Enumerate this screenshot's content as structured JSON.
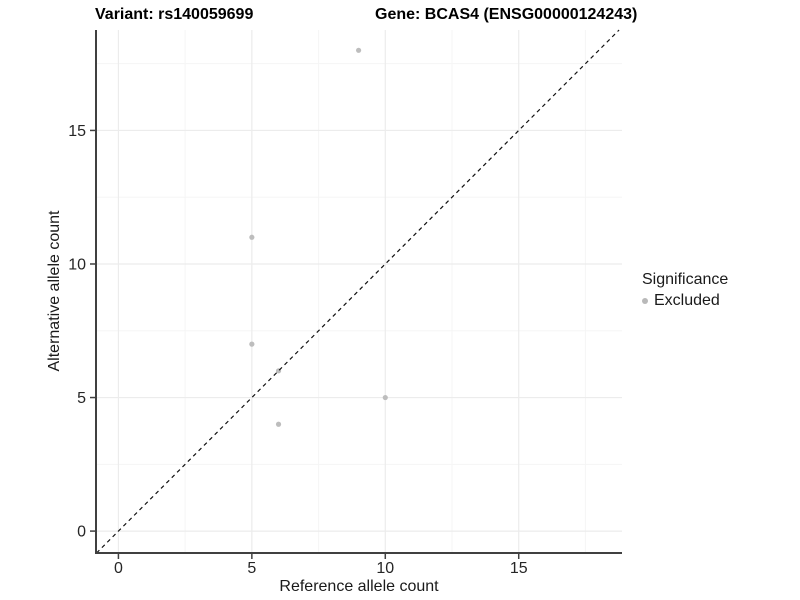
{
  "header": {
    "variant_title": "Variant: rs140059699",
    "gene_title": "Gene: BCAS4 (ENSG00000124243)"
  },
  "chart_data": {
    "type": "scatter",
    "xlabel": "Reference allele count",
    "ylabel": "Alternative allele count",
    "xlim": [
      -0.84,
      18.87
    ],
    "ylim": [
      -0.82,
      18.76
    ],
    "x_major_ticks": [
      0,
      5,
      10,
      15
    ],
    "y_major_ticks": [
      0,
      5,
      10,
      15
    ],
    "x_minor_ticks": [
      2.5,
      7.5,
      12.5,
      17.5
    ],
    "y_minor_ticks": [
      2.5,
      7.5,
      12.5,
      17.5
    ],
    "grid": "major and minor gridlines on white panel",
    "series": [
      {
        "name": "Excluded",
        "color": "#bdbdbd",
        "point_radius": 2.6,
        "points": [
          [
            5,
            11
          ],
          [
            5,
            7
          ],
          [
            6,
            6
          ],
          [
            6,
            4
          ],
          [
            9,
            18
          ],
          [
            10,
            5
          ]
        ]
      }
    ],
    "reference_line": {
      "kind": "identity y=x",
      "style": "dashed",
      "color": "#111111"
    },
    "legend": {
      "title": "Significance",
      "position": "right",
      "items": [
        {
          "label": "Excluded",
          "color": "#b9b9b9"
        }
      ]
    }
  },
  "colors": {
    "background": "#ffffff",
    "point": "#bdbdbd",
    "grid_major": "#ececec",
    "grid_minor": "#f5f5f5",
    "axis_line": "#404040",
    "tick_text": "#262626",
    "dashed_line": "#111111"
  }
}
